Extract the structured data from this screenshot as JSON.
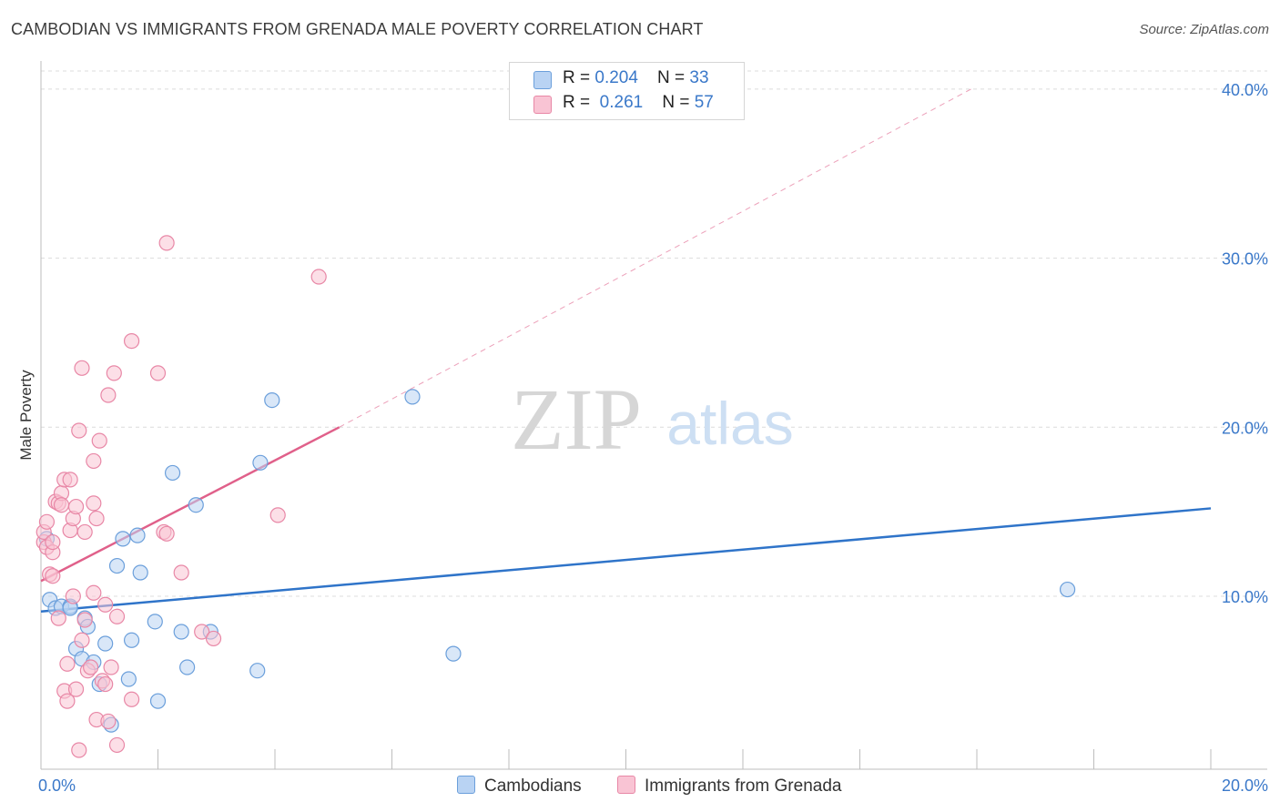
{
  "title": "CAMBODIAN VS IMMIGRANTS FROM GRENADA MALE POVERTY CORRELATION CHART",
  "source": "Source: ZipAtlas.com",
  "watermark": {
    "zip": "ZIP",
    "atlas": "atlas"
  },
  "legend": {
    "rows": [
      {
        "r_label": "R = ",
        "r_value": "0.204",
        "n_label": "N = ",
        "n_value": "33"
      },
      {
        "r_label": "R = ",
        "r_value": " 0.261",
        "n_label": "N = ",
        "n_value": "57"
      }
    ]
  },
  "bottom_legend": {
    "series1": "Cambodians",
    "series2": "Immigrants from Grenada"
  },
  "colors": {
    "blue_fill": "#b9d3f3",
    "blue_stroke": "#6b9fdb",
    "blue_line": "#2f74c9",
    "pink_fill": "#f9c4d4",
    "pink_stroke": "#e887a6",
    "pink_line": "#e0608a",
    "axis_text": "#3a78c9",
    "grid": "#dcdcdc"
  },
  "chart_data": {
    "type": "scatter",
    "xlabel": "",
    "ylabel": "Male Poverty",
    "xlim": [
      0,
      20
    ],
    "ylim": [
      0,
      40
    ],
    "x_tick_labels": [
      "0.0%",
      "20.0%"
    ],
    "y_tick_labels": [
      "10.0%",
      "20.0%",
      "30.0%",
      "40.0%"
    ],
    "y_ticks": [
      10,
      20,
      30,
      40
    ],
    "series": [
      {
        "name": "Cambodians",
        "points": [
          [
            0.1,
            13.4
          ],
          [
            0.15,
            9.8
          ],
          [
            0.25,
            9.3
          ],
          [
            0.35,
            9.4
          ],
          [
            0.5,
            9.4
          ],
          [
            0.6,
            6.9
          ],
          [
            0.7,
            6.3
          ],
          [
            0.75,
            8.7
          ],
          [
            0.8,
            8.2
          ],
          [
            0.9,
            6.1
          ],
          [
            1.0,
            4.8
          ],
          [
            1.1,
            7.2
          ],
          [
            1.3,
            11.8
          ],
          [
            1.4,
            13.4
          ],
          [
            1.5,
            5.1
          ],
          [
            1.55,
            7.4
          ],
          [
            1.65,
            13.6
          ],
          [
            1.7,
            11.4
          ],
          [
            1.95,
            8.5
          ],
          [
            2.0,
            3.8
          ],
          [
            2.25,
            17.3
          ],
          [
            2.4,
            7.9
          ],
          [
            2.5,
            5.8
          ],
          [
            2.65,
            15.4
          ],
          [
            2.9,
            7.9
          ],
          [
            3.7,
            5.6
          ],
          [
            3.75,
            17.9
          ],
          [
            3.95,
            21.6
          ],
          [
            6.35,
            21.8
          ],
          [
            7.05,
            6.6
          ],
          [
            17.55,
            10.4
          ],
          [
            0.5,
            9.3
          ],
          [
            1.2,
            2.4
          ]
        ]
      },
      {
        "name": "Immigrants from Grenada",
        "points": [
          [
            0.05,
            13.2
          ],
          [
            0.05,
            13.8
          ],
          [
            0.1,
            14.4
          ],
          [
            0.1,
            12.9
          ],
          [
            0.15,
            11.3
          ],
          [
            0.2,
            11.2
          ],
          [
            0.2,
            12.6
          ],
          [
            0.2,
            13.2
          ],
          [
            0.25,
            15.6
          ],
          [
            0.3,
            8.7
          ],
          [
            0.3,
            15.5
          ],
          [
            0.35,
            16.1
          ],
          [
            0.35,
            15.4
          ],
          [
            0.4,
            16.9
          ],
          [
            0.4,
            4.4
          ],
          [
            0.45,
            6.0
          ],
          [
            0.45,
            3.8
          ],
          [
            0.5,
            16.9
          ],
          [
            0.5,
            13.9
          ],
          [
            0.55,
            14.6
          ],
          [
            0.55,
            10.0
          ],
          [
            0.6,
            15.3
          ],
          [
            0.6,
            4.5
          ],
          [
            0.65,
            0.9
          ],
          [
            0.65,
            19.8
          ],
          [
            0.7,
            23.5
          ],
          [
            0.7,
            7.4
          ],
          [
            0.75,
            8.6
          ],
          [
            0.75,
            13.8
          ],
          [
            0.8,
            5.6
          ],
          [
            0.85,
            5.8
          ],
          [
            0.9,
            10.2
          ],
          [
            0.9,
            18.0
          ],
          [
            0.9,
            15.5
          ],
          [
            0.95,
            2.7
          ],
          [
            0.95,
            14.6
          ],
          [
            1.0,
            19.2
          ],
          [
            1.05,
            5.0
          ],
          [
            1.1,
            4.8
          ],
          [
            1.1,
            9.5
          ],
          [
            1.15,
            2.6
          ],
          [
            1.15,
            21.9
          ],
          [
            1.2,
            5.8
          ],
          [
            1.25,
            23.2
          ],
          [
            1.3,
            8.8
          ],
          [
            1.55,
            25.1
          ],
          [
            1.55,
            3.9
          ],
          [
            2.0,
            23.2
          ],
          [
            2.1,
            13.8
          ],
          [
            2.15,
            13.7
          ],
          [
            2.15,
            30.9
          ],
          [
            2.4,
            11.4
          ],
          [
            2.75,
            7.9
          ],
          [
            2.95,
            7.5
          ],
          [
            4.05,
            14.8
          ],
          [
            4.75,
            28.9
          ],
          [
            1.3,
            1.2
          ]
        ]
      }
    ],
    "trend_lines": [
      {
        "series": "Cambodians",
        "x0": 0,
        "y0": 9.1,
        "x1": 20,
        "y1": 15.2,
        "style": "solid"
      },
      {
        "series": "Immigrants from Grenada",
        "x0": 0,
        "y0": 10.9,
        "x1": 5.1,
        "y1": 20.0,
        "style": "solid"
      },
      {
        "series": "Immigrants from Grenada",
        "x0": 5.1,
        "y0": 20.0,
        "x1": 15.9,
        "y1": 40.0,
        "style": "dashed"
      }
    ]
  }
}
